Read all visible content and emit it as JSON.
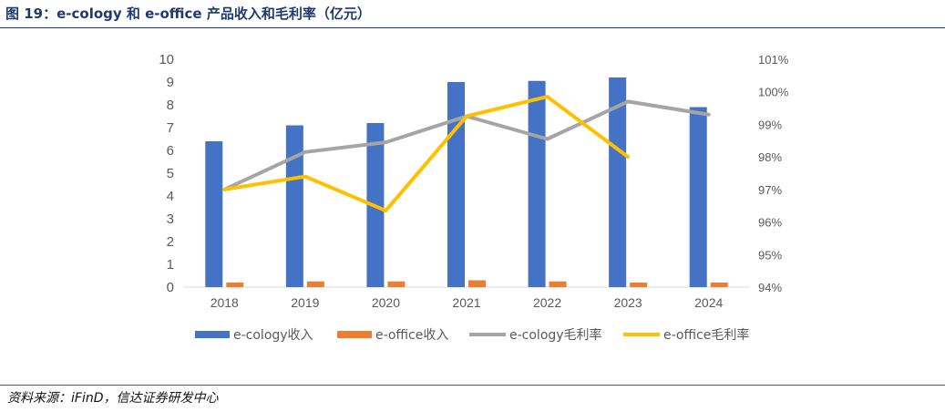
{
  "header": {
    "title": "图 19：e-cology 和 e-office 产品收入和毛利率（亿元）"
  },
  "footer": {
    "source": "资料来源：iFinD，信达证券研发中心"
  },
  "colors": {
    "ecology_revenue": "#4472c4",
    "eoffice_revenue": "#ed7d31",
    "ecology_margin": "#a5a5a5",
    "eoffice_margin": "#ffc000",
    "title": "#1f3a6e"
  },
  "chart_data": {
    "type": "bar",
    "categories": [
      "2018",
      "2019",
      "2020",
      "2021",
      "2022",
      "2023",
      "2024"
    ],
    "y_ticks": [
      "0",
      "1",
      "2",
      "3",
      "4",
      "5",
      "6",
      "7",
      "8",
      "9",
      "10"
    ],
    "y2_ticks": [
      "94%",
      "95%",
      "96%",
      "97%",
      "98%",
      "99%",
      "100%",
      "101%"
    ],
    "ylim": [
      0,
      10
    ],
    "y2lim": [
      94,
      101
    ],
    "grid": false,
    "legend_position": "bottom",
    "series": [
      {
        "name": "e-cology收入",
        "type": "bar",
        "axis": "left",
        "values": [
          6.4,
          7.1,
          7.2,
          9.0,
          9.05,
          9.2,
          7.9
        ]
      },
      {
        "name": "e-office收入",
        "type": "bar",
        "axis": "left",
        "values": [
          0.2,
          0.25,
          0.25,
          0.3,
          0.25,
          0.2,
          0.2
        ]
      },
      {
        "name": "e-cology毛利率",
        "type": "line",
        "axis": "right",
        "unit": "%",
        "values": [
          97.0,
          98.15,
          98.45,
          99.25,
          98.55,
          99.7,
          99.3
        ]
      },
      {
        "name": "e-office毛利率",
        "type": "line",
        "axis": "right",
        "unit": "%",
        "values": [
          97.0,
          97.4,
          96.35,
          99.25,
          99.85,
          98.0,
          null
        ]
      }
    ]
  }
}
